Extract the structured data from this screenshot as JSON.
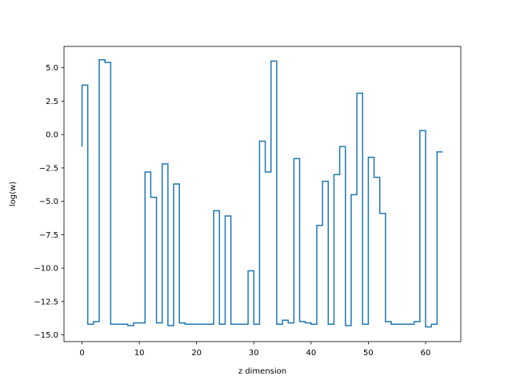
{
  "chart_data": {
    "type": "line",
    "drawstyle": "steps-pre",
    "title": "",
    "xlabel": "z dimension",
    "ylabel": "log(w)",
    "xlim": [
      -3.15,
      66.15
    ],
    "ylim": [
      -15.5,
      6.6
    ],
    "xticks": [
      0,
      10,
      20,
      30,
      40,
      50,
      60
    ],
    "xtick_labels": [
      "0",
      "10",
      "20",
      "30",
      "40",
      "50",
      "60"
    ],
    "yticks": [
      -15.0,
      -12.5,
      -10.0,
      -7.5,
      -5.0,
      -2.5,
      0.0,
      2.5,
      5.0
    ],
    "ytick_labels": [
      "−15.0",
      "−12.5",
      "−10.0",
      "−7.5",
      "−5.0",
      "−2.5",
      "0.0",
      "2.5",
      "5.0"
    ],
    "grid": false,
    "series": [
      {
        "color": "#1f77b4",
        "x": [
          0,
          1,
          2,
          3,
          4,
          5,
          6,
          7,
          8,
          9,
          10,
          11,
          12,
          13,
          14,
          15,
          16,
          17,
          18,
          19,
          20,
          21,
          22,
          23,
          24,
          25,
          26,
          27,
          28,
          29,
          30,
          31,
          32,
          33,
          34,
          35,
          36,
          37,
          38,
          39,
          40,
          41,
          42,
          43,
          44,
          45,
          46,
          47,
          48,
          49,
          50,
          51,
          52,
          53,
          54,
          55,
          56,
          57,
          58,
          59,
          60,
          61,
          62,
          63
        ],
        "values": [
          -0.9,
          3.7,
          -14.2,
          -14.0,
          5.6,
          5.4,
          -14.2,
          -14.2,
          -14.2,
          -14.3,
          -14.1,
          -14.1,
          -2.8,
          -4.7,
          -14.1,
          -2.2,
          -14.3,
          -3.7,
          -14.1,
          -14.2,
          -14.2,
          -14.2,
          -14.2,
          -14.2,
          -5.7,
          -14.2,
          -6.1,
          -14.2,
          -14.2,
          -14.2,
          -10.2,
          -14.2,
          -0.5,
          -2.8,
          5.5,
          -14.2,
          -13.9,
          -14.1,
          -1.8,
          -14.0,
          -14.1,
          -14.2,
          -6.8,
          -3.5,
          -14.2,
          -3.0,
          -0.9,
          -14.3,
          -4.5,
          3.1,
          -14.2,
          -1.7,
          -3.2,
          -5.9,
          -14.0,
          -14.2,
          -14.2,
          -14.2,
          -14.2,
          -14.0,
          0.3,
          -14.4,
          -14.2,
          -1.3
        ]
      }
    ]
  }
}
